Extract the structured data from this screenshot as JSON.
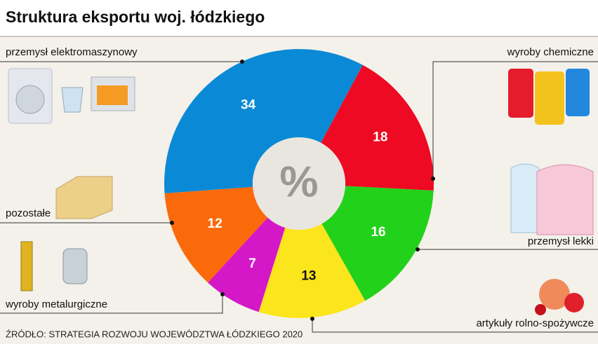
{
  "chart_data": {
    "type": "donut",
    "title": "Struktura eksportu woj. łódzkiego",
    "center_label": "%",
    "categories": [
      "przemysł elektromaszynowy",
      "wyroby chemiczne",
      "przemysł lekki",
      "artykuły rolno-spożywcze",
      "wyroby metalurgiczne",
      "pozostałe"
    ],
    "values": [
      34,
      18,
      16,
      13,
      7,
      12
    ],
    "colors": [
      "#0a8ad6",
      "#ee0a22",
      "#22d11a",
      "#fbe51c",
      "#d418c8",
      "#fb6a0a"
    ],
    "source": "ŹRÓDŁO: STRATEGIA ROZWOJU WOJEWÓDZTWA ŁÓDZKIEGO 2020"
  }
}
